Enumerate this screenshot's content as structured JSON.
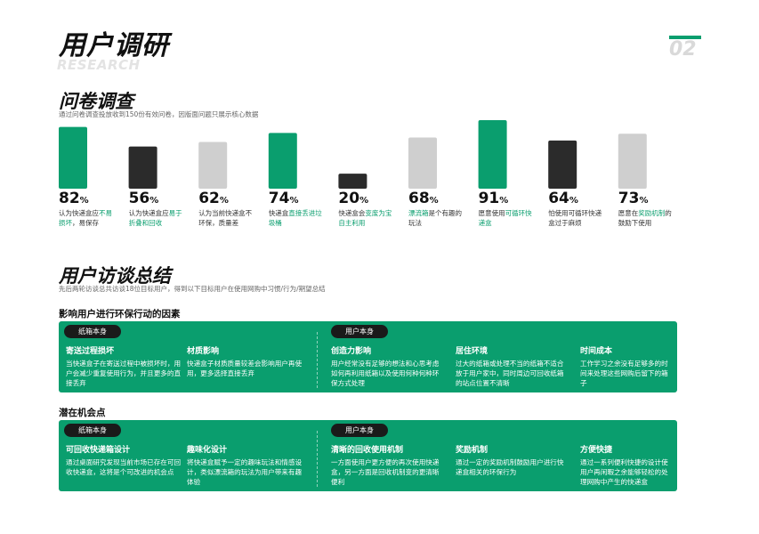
{
  "header": {
    "title": "用户调研",
    "subtitle_en": "RESEARCH",
    "page_number": "02",
    "accent": "#0a9e6e"
  },
  "survey": {
    "title": "问卷调查",
    "subtitle": "通过问卷调查投放收到150份有效问卷，因版面问题只展示核心数据"
  },
  "chart_data": {
    "type": "bar",
    "categories": [
      "认为快递盒应不易损坏，易保存",
      "认为快递盒应易于折叠和回收",
      "认为当前快递盒不环保，质量差",
      "快递盒直接丢进垃圾桶",
      "快递盒会变废为宝自主利用",
      "漂流箱是个有趣的玩法",
      "愿意使用可循环快递盒",
      "怕使用可循环快递盒过于麻烦",
      "愿意在奖励机制的鼓励下使用"
    ],
    "values": [
      82,
      56,
      62,
      74,
      20,
      68,
      91,
      64,
      73
    ],
    "unit": "%",
    "bar_colors": [
      "#0a9e6e",
      "#2b2b2b",
      "#cfcfcf",
      "#0a9e6e",
      "#2b2b2b",
      "#cfcfcf",
      "#0a9e6e",
      "#2b2b2b",
      "#cfcfcf"
    ],
    "label_parts": [
      [
        {
          "t": "认为快递盒应",
          "h": false
        },
        {
          "t": "不易损坏",
          "h": true
        },
        {
          "t": "，易保存",
          "h": false
        }
      ],
      [
        {
          "t": "认为快递盒应",
          "h": false
        },
        {
          "t": "易于折叠和回收",
          "h": true
        }
      ],
      [
        {
          "t": "认为当前快递盒不环保，质量差",
          "h": false
        }
      ],
      [
        {
          "t": "快递盒",
          "h": false
        },
        {
          "t": "直接丢进垃圾桶",
          "h": true
        }
      ],
      [
        {
          "t": "快递盒会",
          "h": false
        },
        {
          "t": "变废为宝自主利用",
          "h": true
        }
      ],
      [
        {
          "t": "漂流箱",
          "h": true
        },
        {
          "t": "是个有趣的玩法",
          "h": false
        }
      ],
      [
        {
          "t": "愿意使用",
          "h": false
        },
        {
          "t": "可循环快递盒",
          "h": true
        }
      ],
      [
        {
          "t": "怕使用可循环快递盒过于麻烦",
          "h": false
        }
      ],
      [
        {
          "t": "愿意在",
          "h": false
        },
        {
          "t": "奖励机制",
          "h": true
        },
        {
          "t": "的鼓励下使用",
          "h": false
        }
      ]
    ]
  },
  "interview": {
    "title": "用户访谈总结",
    "subtitle": "先后两轮访谈总共访谈18位目标用户，得到以下目标用户在使用网购中习惯/行为/期望总结"
  },
  "factors": {
    "title": "影响用户进行环保行动的因素",
    "pill_box": "纸箱本身",
    "pill_user": "用户本身",
    "items": [
      {
        "title": "寄送过程损坏",
        "desc": "当快递盒子在寄送过程中被损坏时，用户会减少重复使用行为，并且更多的直接丢弃"
      },
      {
        "title": "材质影响",
        "desc": "快递盒子材质质量较差会影响用户再使用，更多选择直接丢弃"
      },
      {
        "title": "创造力影响",
        "desc": "用户经常没有足够的想法和心思考虑如何再利用纸箱以及使用何种何种环保方式处理"
      },
      {
        "title": "居住环境",
        "desc": "过大的纸箱或处理不当的纸箱不适合放于用户家中，同时周边可回收纸箱的站点位置不清晰"
      },
      {
        "title": "时间成本",
        "desc": "工作学习之余没有足够多的时间来处理这些网购后留下的箱子"
      }
    ]
  },
  "opportunities": {
    "title": "潜在机会点",
    "pill_box": "纸箱本身",
    "pill_user": "用户本身",
    "items": [
      {
        "title": "可回收快递箱设计",
        "desc": "通过桌面研究发现当前市场已存在可回收快递盒，这将是个可改进的机会点"
      },
      {
        "title": "趣味化设计",
        "desc": "将快递盒赋予一定的趣味玩法和情感设计，类似漂流箱的玩法为用户带来有趣体验"
      },
      {
        "title": "清晰的回收使用机制",
        "desc": "一方面使用户更方便的再次使用快递盒，另一方面是回收机制变的更清晰便利"
      },
      {
        "title": "奖励机制",
        "desc": "通过一定的奖励机制鼓励用户进行快递盒相关的环保行为"
      },
      {
        "title": "方便快捷",
        "desc": "通过一系列便利快捷的设计使用户再闲暇之余能够轻松的处理网购中产生的快递盒"
      }
    ]
  }
}
